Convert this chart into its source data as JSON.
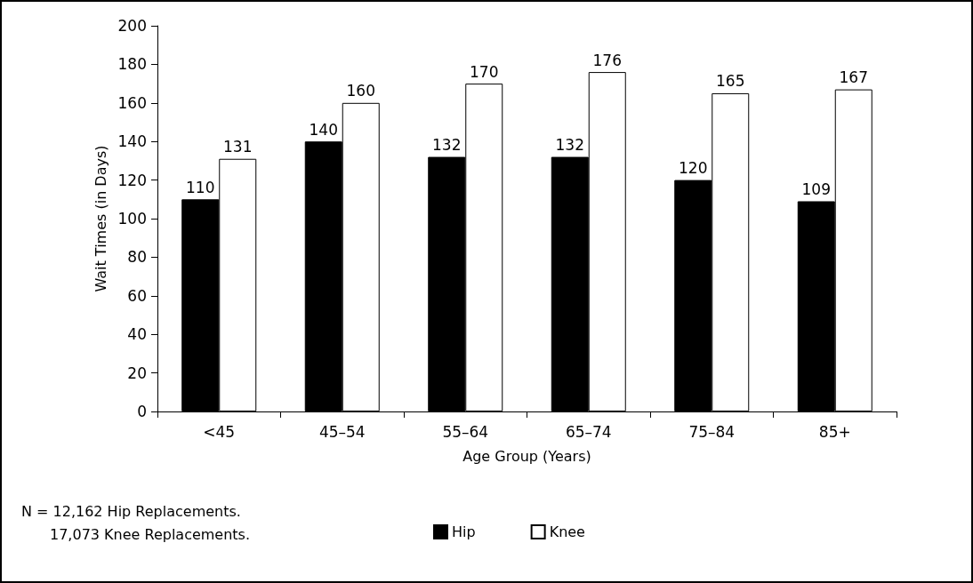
{
  "chart_data": {
    "type": "bar",
    "xlabel": "Age Group (Years)",
    "ylabel": "Wait Times (in Days)",
    "categories": [
      "<45",
      "45–54",
      "55–64",
      "65–74",
      "75–84",
      "85+"
    ],
    "series": [
      {
        "name": "Hip",
        "color": "#000000",
        "values": [
          110,
          140,
          132,
          132,
          120,
          109
        ]
      },
      {
        "name": "Knee",
        "color": "#ffffff",
        "values": [
          131,
          160,
          170,
          176,
          165,
          167
        ]
      }
    ],
    "ylim": [
      0,
      200
    ],
    "yticks": [
      0,
      20,
      40,
      60,
      80,
      100,
      120,
      140,
      160,
      180,
      200
    ],
    "grid": false,
    "legend": "bottom",
    "data_labels": true,
    "annotations": [
      "N = 12,162 Hip Replacements.",
      "17,073 Knee Replacements."
    ]
  }
}
